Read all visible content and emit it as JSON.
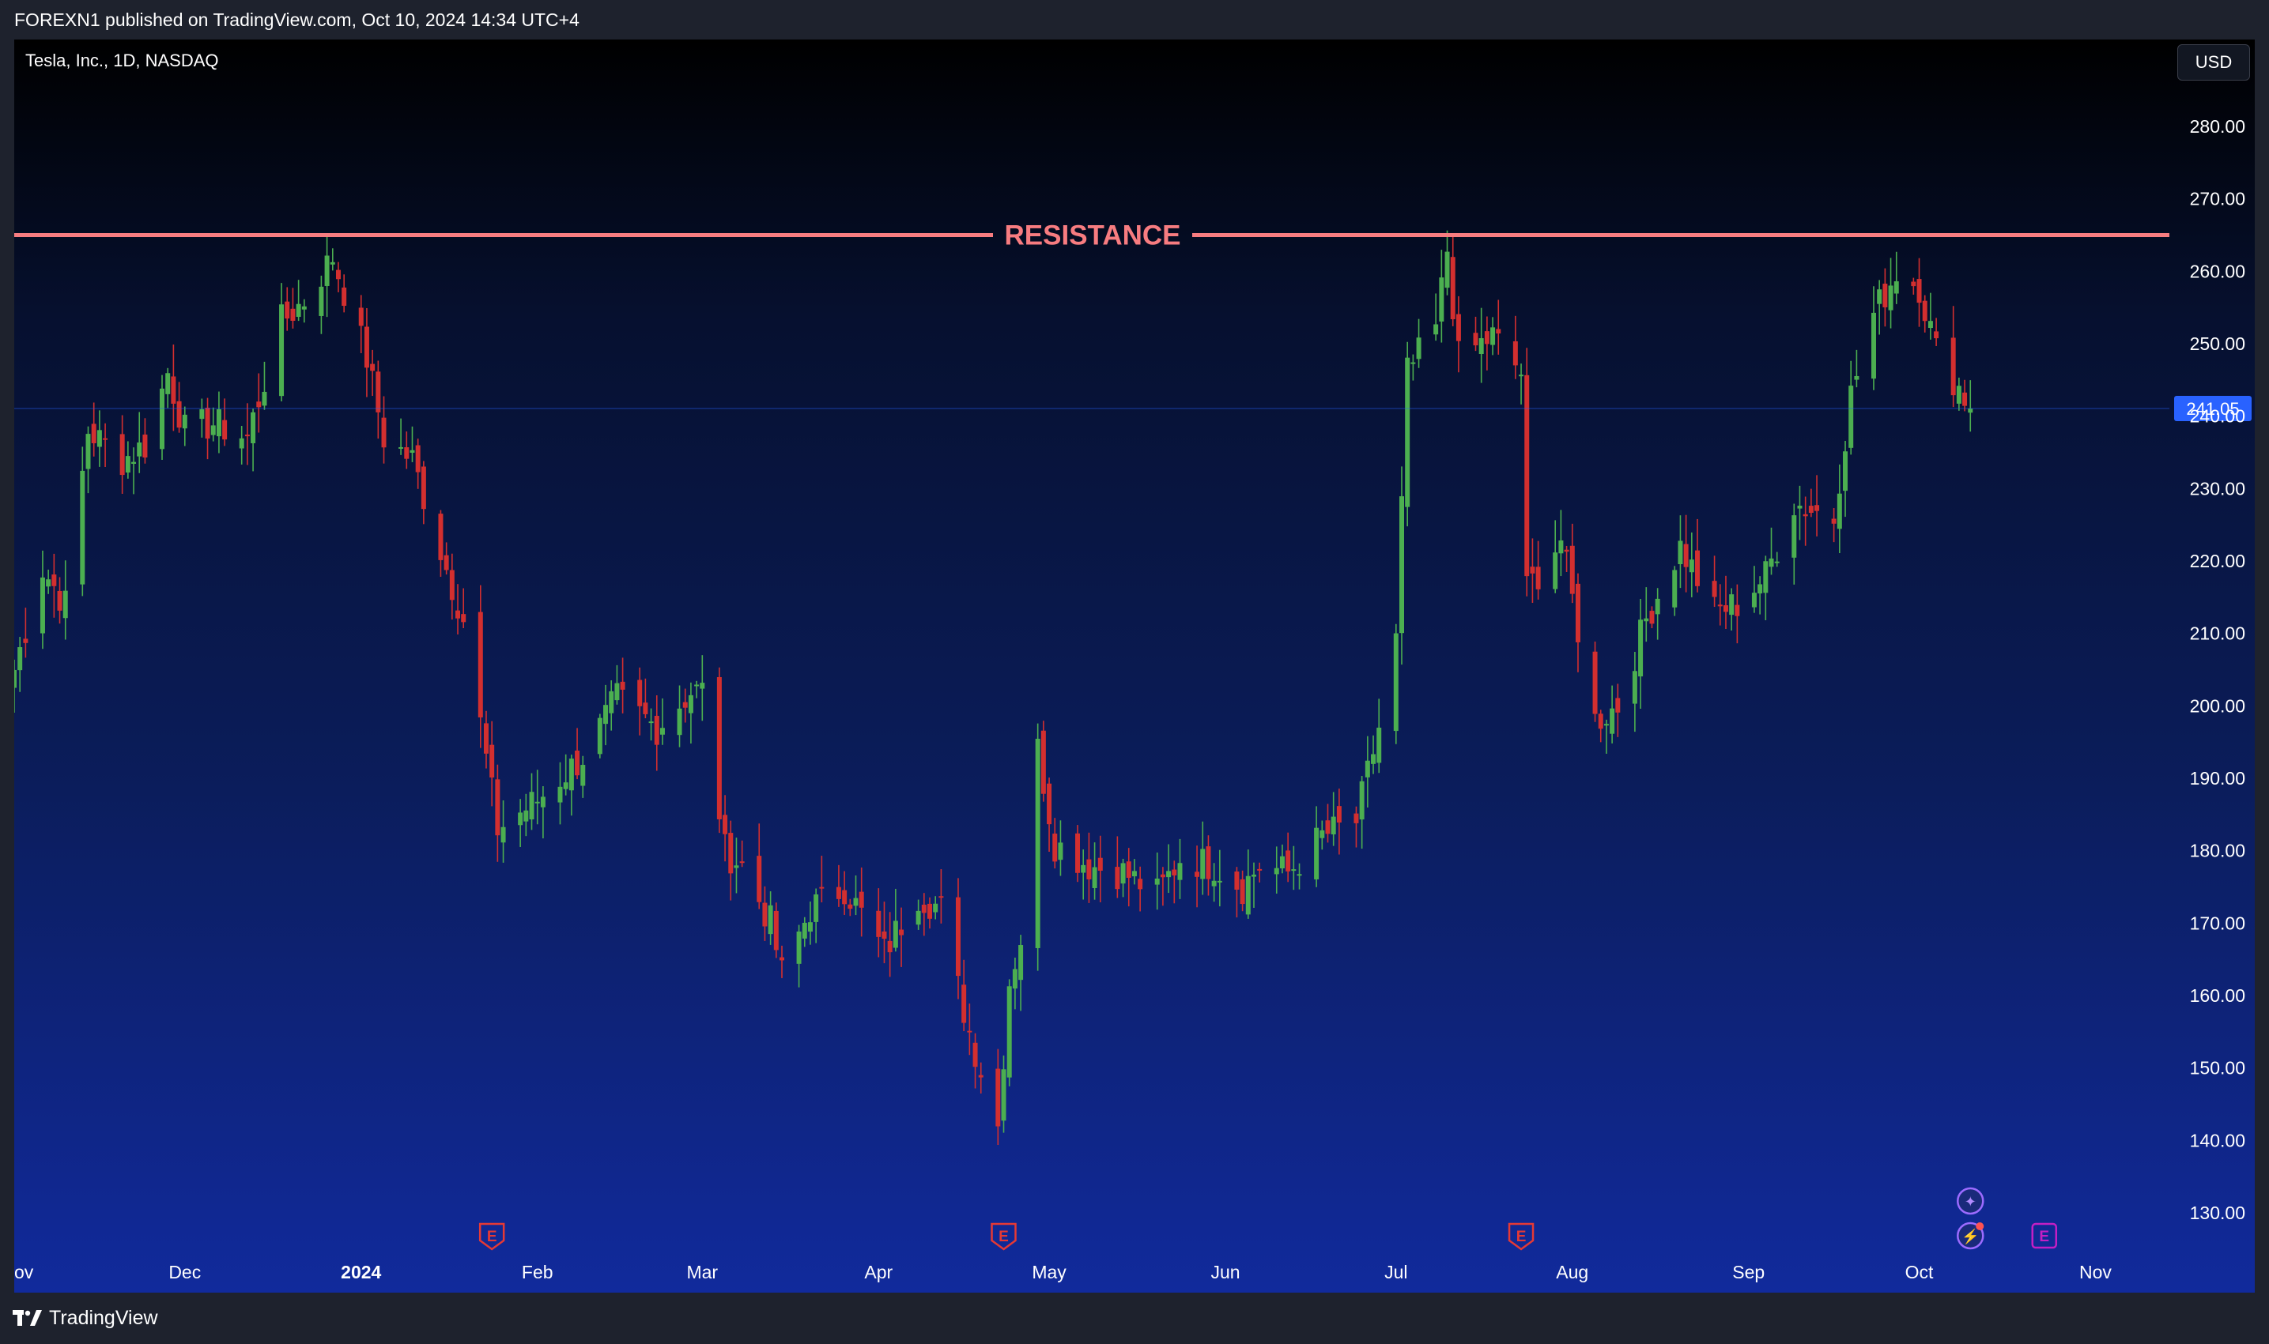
{
  "header": {
    "published_text": "FOREXN1 published on TradingView.com, Oct 10, 2024 14:34 UTC+4"
  },
  "chart": {
    "symbol_label": "Tesla, Inc., 1D, NASDAQ",
    "currency_button": "USD",
    "resistance_label": "RESISTANCE",
    "last_price_label": "241.05",
    "colors": {
      "up": "#4caf50",
      "down": "#d32f2f",
      "resistance": "#f77c80",
      "last_price_bg": "#2962ff"
    },
    "icons": [
      {
        "name": "earnings-icon",
        "glyph": "E",
        "date": "2024-01-24"
      },
      {
        "name": "earnings-icon",
        "glyph": "E",
        "date": "2024-04-23"
      },
      {
        "name": "earnings-icon",
        "glyph": "E",
        "date": "2024-07-23"
      },
      {
        "name": "earnings-icon",
        "glyph": "E",
        "date": "2024-10-23"
      },
      {
        "name": "event-spark-icon",
        "glyph": "✦",
        "date": "2024-10-10"
      },
      {
        "name": "event-bolt-icon",
        "glyph": "⚡",
        "date": "2024-10-10"
      }
    ]
  },
  "chart_data": {
    "type": "candlestick",
    "symbol": "Tesla, Inc.",
    "interval": "1D",
    "exchange": "NASDAQ",
    "currency": "USD",
    "ylim": [
      124,
      292
    ],
    "y_ticks": [
      130,
      140,
      150,
      160,
      170,
      180,
      190,
      200,
      210,
      220,
      230,
      240,
      250,
      260,
      270,
      280,
      290
    ],
    "x_ticks": [
      {
        "label": "ov",
        "date": "2023-11-01"
      },
      {
        "label": "Dec",
        "date": "2023-12-01"
      },
      {
        "label": "2024",
        "date": "2024-01-01",
        "bold": true
      },
      {
        "label": "Feb",
        "date": "2024-02-01"
      },
      {
        "label": "Mar",
        "date": "2024-03-01"
      },
      {
        "label": "Apr",
        "date": "2024-04-01"
      },
      {
        "label": "May",
        "date": "2024-05-01"
      },
      {
        "label": "Jun",
        "date": "2024-06-01"
      },
      {
        "label": "Jul",
        "date": "2024-07-01"
      },
      {
        "label": "Aug",
        "date": "2024-08-01"
      },
      {
        "label": "Sep",
        "date": "2024-09-01"
      },
      {
        "label": "Oct",
        "date": "2024-10-01"
      },
      {
        "label": "Nov",
        "date": "2024-11-01"
      }
    ],
    "x_range": [
      "2023-11-01",
      "2024-11-14"
    ],
    "resistance": 265,
    "last_price": 241.05,
    "anchors": [
      [
        "2023-11-01",
        205
      ],
      [
        "2023-11-06",
        219
      ],
      [
        "2023-11-10",
        214
      ],
      [
        "2023-11-14",
        238
      ],
      [
        "2023-11-20",
        234
      ],
      [
        "2023-11-24",
        236
      ],
      [
        "2023-11-28",
        246
      ],
      [
        "2023-12-01",
        238
      ],
      [
        "2023-12-06",
        239
      ],
      [
        "2023-12-12",
        237
      ],
      [
        "2023-12-18",
        253
      ],
      [
        "2023-12-22",
        256
      ],
      [
        "2023-12-27",
        262
      ],
      [
        "2024-01-02",
        248
      ],
      [
        "2024-01-05",
        237
      ],
      [
        "2024-01-10",
        234
      ],
      [
        "2024-01-16",
        219
      ],
      [
        "2024-01-19",
        212
      ],
      [
        "2024-01-25",
        183
      ],
      [
        "2024-02-01",
        187
      ],
      [
        "2024-02-09",
        193
      ],
      [
        "2024-02-15",
        201
      ],
      [
        "2024-02-22",
        197
      ],
      [
        "2024-02-28",
        202
      ],
      [
        "2024-03-01",
        202
      ],
      [
        "2024-03-05",
        180
      ],
      [
        "2024-03-08",
        178
      ],
      [
        "2024-03-13",
        170
      ],
      [
        "2024-03-15",
        163
      ],
      [
        "2024-03-20",
        172
      ],
      [
        "2024-03-26",
        175
      ],
      [
        "2024-04-02",
        166
      ],
      [
        "2024-04-08",
        174
      ],
      [
        "2024-04-12",
        172
      ],
      [
        "2024-04-15",
        161
      ],
      [
        "2024-04-17",
        155
      ],
      [
        "2024-04-22",
        142
      ],
      [
        "2024-04-24",
        162
      ],
      [
        "2024-04-26",
        168
      ],
      [
        "2024-04-29",
        194
      ],
      [
        "2024-05-02",
        181
      ],
      [
        "2024-05-08",
        178
      ],
      [
        "2024-05-14",
        177
      ],
      [
        "2024-05-20",
        174
      ],
      [
        "2024-05-24",
        179
      ],
      [
        "2024-05-30",
        178
      ],
      [
        "2024-06-04",
        175
      ],
      [
        "2024-06-07",
        178
      ],
      [
        "2024-06-12",
        177
      ],
      [
        "2024-06-18",
        182
      ],
      [
        "2024-06-24",
        184
      ],
      [
        "2024-06-28",
        197
      ],
      [
        "2024-07-01",
        209
      ],
      [
        "2024-07-03",
        246
      ],
      [
        "2024-07-08",
        252
      ],
      [
        "2024-07-10",
        263
      ],
      [
        "2024-07-12",
        248
      ],
      [
        "2024-07-18",
        251
      ],
      [
        "2024-07-23",
        246
      ],
      [
        "2024-07-24",
        216
      ],
      [
        "2024-07-30",
        223
      ],
      [
        "2024-08-05",
        198
      ],
      [
        "2024-08-09",
        200
      ],
      [
        "2024-08-14",
        212
      ],
      [
        "2024-08-20",
        222
      ],
      [
        "2024-08-26",
        213
      ],
      [
        "2024-08-30",
        214
      ],
      [
        "2024-09-04",
        218
      ],
      [
        "2024-09-09",
        228
      ],
      [
        "2024-09-16",
        226
      ],
      [
        "2024-09-19",
        243
      ],
      [
        "2024-09-23",
        254
      ],
      [
        "2024-09-27",
        260
      ],
      [
        "2024-10-01",
        258
      ],
      [
        "2024-10-04",
        249
      ],
      [
        "2024-10-08",
        244
      ],
      [
        "2024-10-10",
        241.05
      ]
    ]
  }
}
